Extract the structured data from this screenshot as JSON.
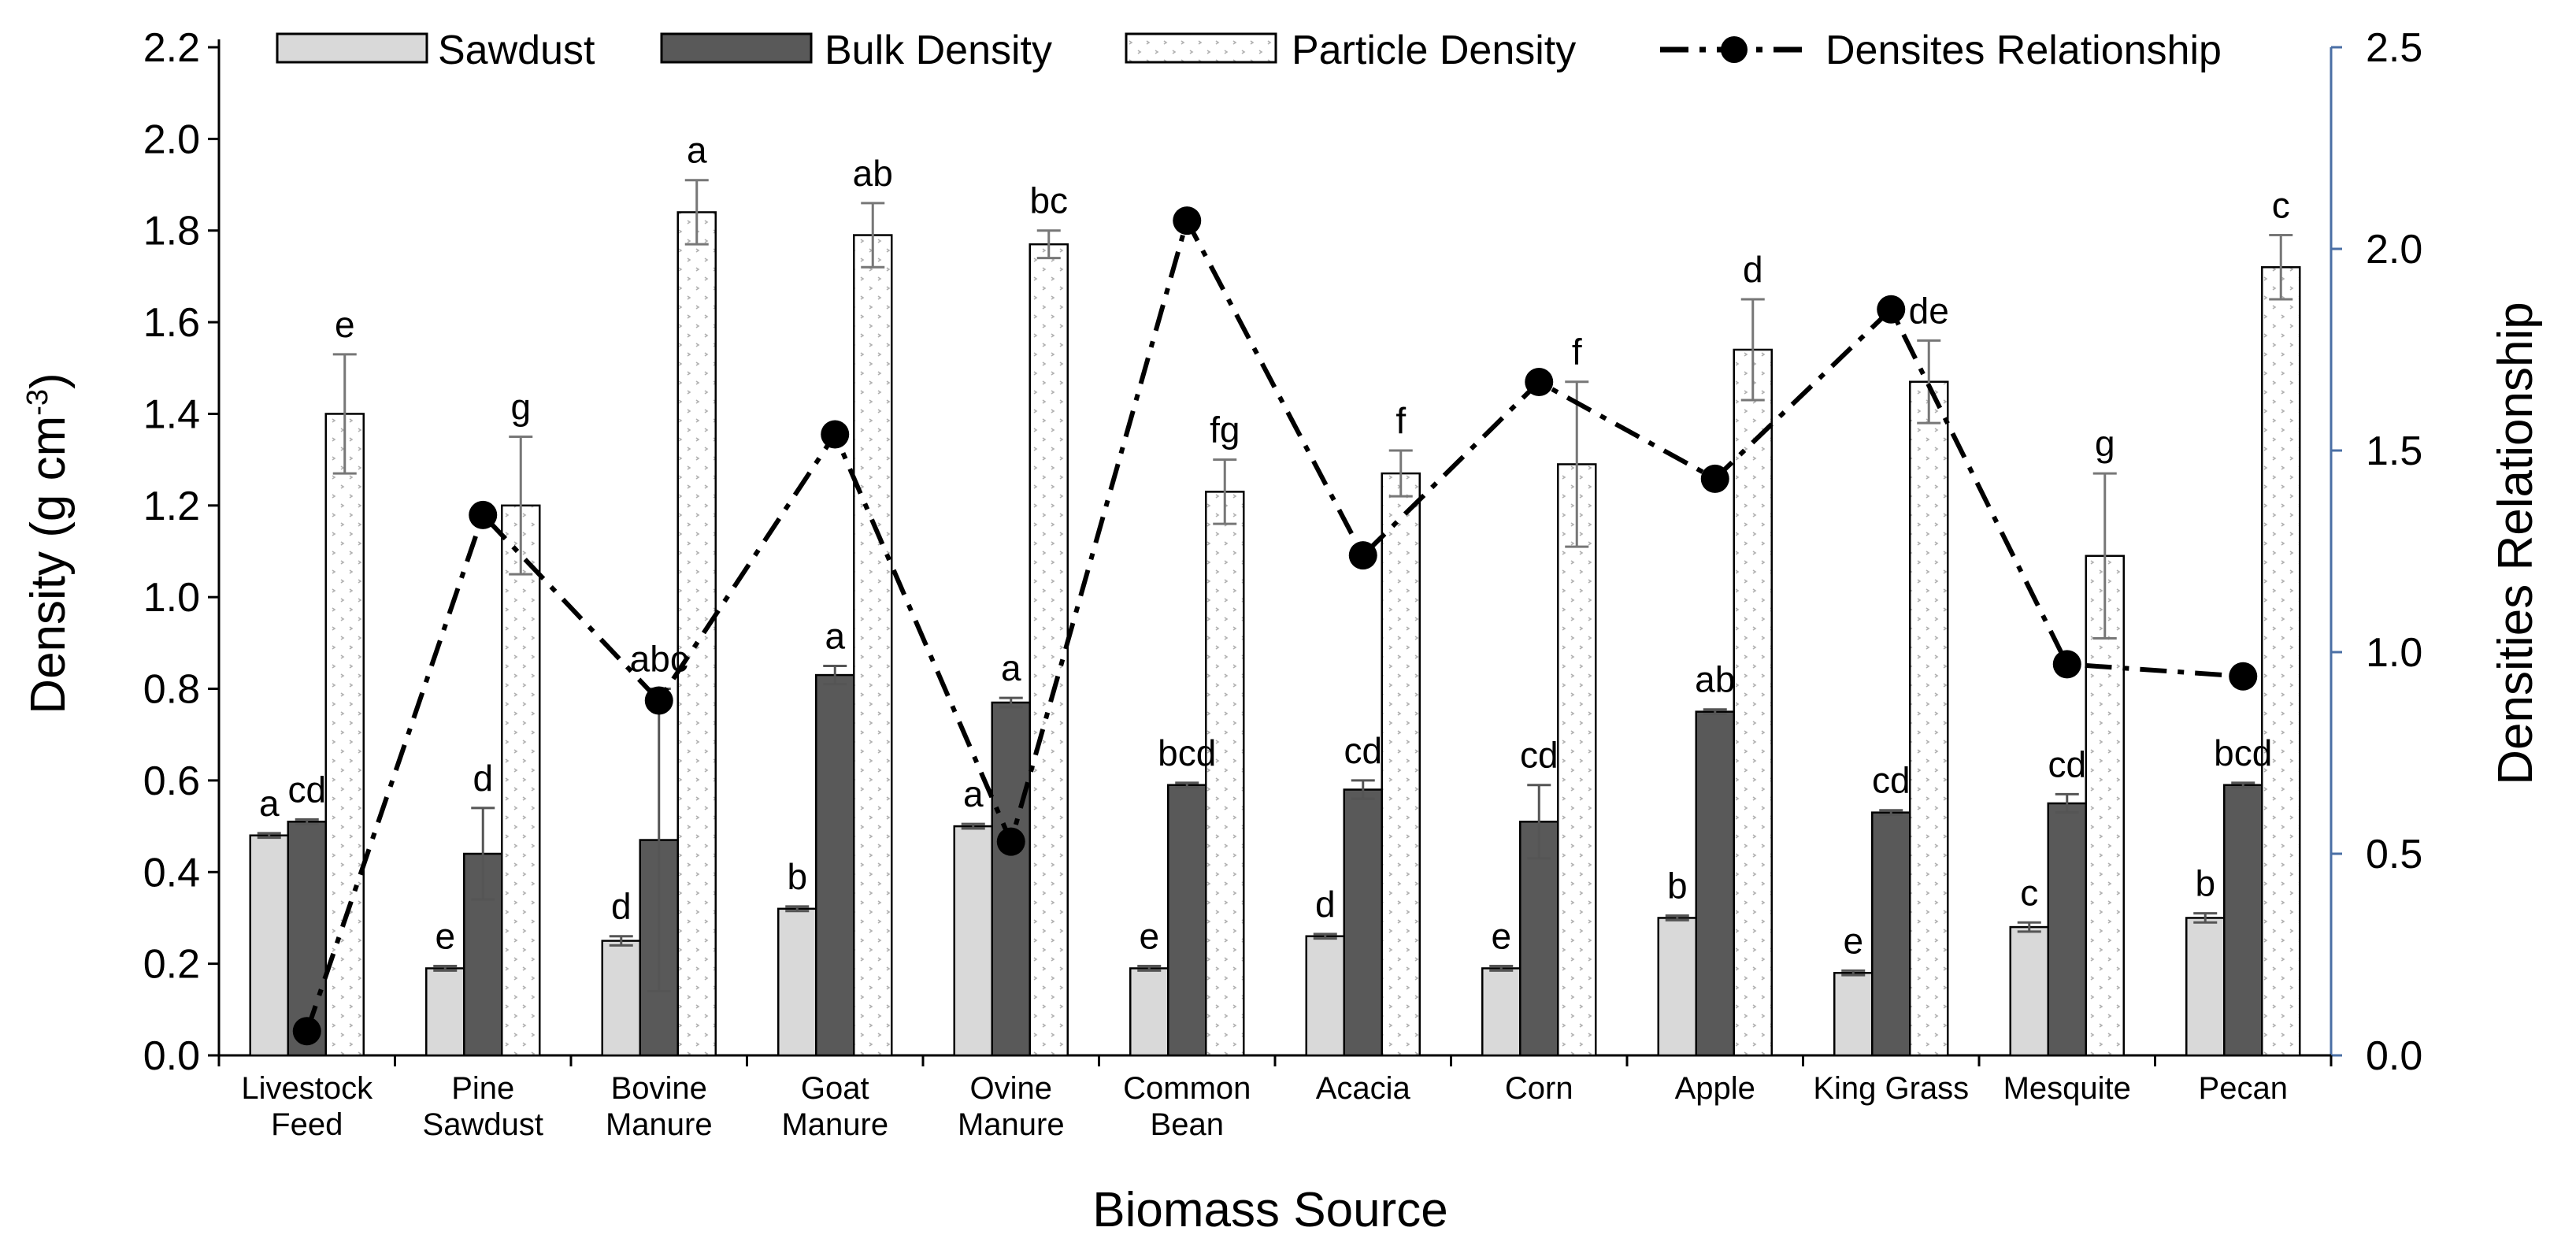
{
  "chart_data": {
    "type": "bar",
    "title": "",
    "xlabel": "Biomass Source",
    "ylabel": "Density (g cm",
    "ylabel_superscript": "-3",
    "ylabel_close": ")",
    "y2label": "Densities Relationship",
    "ylim": [
      0,
      2.2
    ],
    "y2lim": [
      0,
      2.5
    ],
    "yticks": [
      "0.0",
      "0.2",
      "0.4",
      "0.6",
      "0.8",
      "1.0",
      "1.2",
      "1.4",
      "1.6",
      "1.8",
      "2.0",
      "2.2"
    ],
    "y2ticks": [
      "0.0",
      "0.5",
      "1.0",
      "1.5",
      "2.0",
      "2.5"
    ],
    "legend_position": "top",
    "categories": [
      [
        "Livestock",
        "Feed"
      ],
      [
        "Pine",
        "Sawdust"
      ],
      [
        "Bovine",
        "Manure"
      ],
      [
        "Goat",
        "Manure"
      ],
      [
        "Ovine",
        "Manure"
      ],
      [
        "Common",
        "Bean"
      ],
      [
        "Acacia"
      ],
      [
        "Corn"
      ],
      [
        "Apple"
      ],
      [
        "King Grass"
      ],
      [
        "Mesquite"
      ],
      [
        "Pecan"
      ]
    ],
    "series": [
      {
        "name": "Sawdust",
        "color": "#d9d9d9",
        "values": [
          0.48,
          0.19,
          0.25,
          0.32,
          0.5,
          0.19,
          0.26,
          0.19,
          0.3,
          0.18,
          0.28,
          0.3
        ],
        "errors": [
          0.005,
          0.005,
          0.01,
          0.005,
          0.005,
          0.005,
          0.005,
          0.005,
          0.005,
          0.005,
          0.01,
          0.01
        ],
        "labels": [
          "a",
          "e",
          "d",
          "b",
          "a",
          "e",
          "d",
          "e",
          "b",
          "e",
          "c",
          "b"
        ]
      },
      {
        "name": "Bulk Density",
        "color": "#595959",
        "values": [
          0.51,
          0.44,
          0.47,
          0.83,
          0.77,
          0.59,
          0.58,
          0.51,
          0.75,
          0.53,
          0.55,
          0.59
        ],
        "errors": [
          0.005,
          0.1,
          0.33,
          0.02,
          0.01,
          0.005,
          0.02,
          0.08,
          0.005,
          0.005,
          0.02,
          0.005
        ],
        "labels": [
          "cd",
          "d",
          "abc",
          "a",
          "a",
          "bcd",
          "cd",
          "cd",
          "ab",
          "cd",
          "cd",
          "bcd"
        ]
      },
      {
        "name": "Particle Density",
        "color": "#ffffff",
        "values": [
          1.4,
          1.2,
          1.84,
          1.79,
          1.77,
          1.23,
          1.27,
          1.29,
          1.54,
          1.47,
          1.09,
          1.72
        ],
        "errors": [
          0.13,
          0.15,
          0.07,
          0.07,
          0.03,
          0.07,
          0.05,
          0.18,
          0.11,
          0.09,
          0.18,
          0.07
        ],
        "labels": [
          "e",
          "g",
          "a",
          "ab",
          "bc",
          "fg",
          "f",
          "f",
          "d",
          "de",
          "g",
          "c"
        ]
      }
    ],
    "line": {
      "name": "Densites Relationship",
      "axis": "y2",
      "values": [
        0.06,
        1.34,
        0.88,
        1.54,
        0.53,
        2.07,
        1.24,
        1.67,
        1.43,
        1.85,
        0.97,
        0.94
      ]
    }
  }
}
